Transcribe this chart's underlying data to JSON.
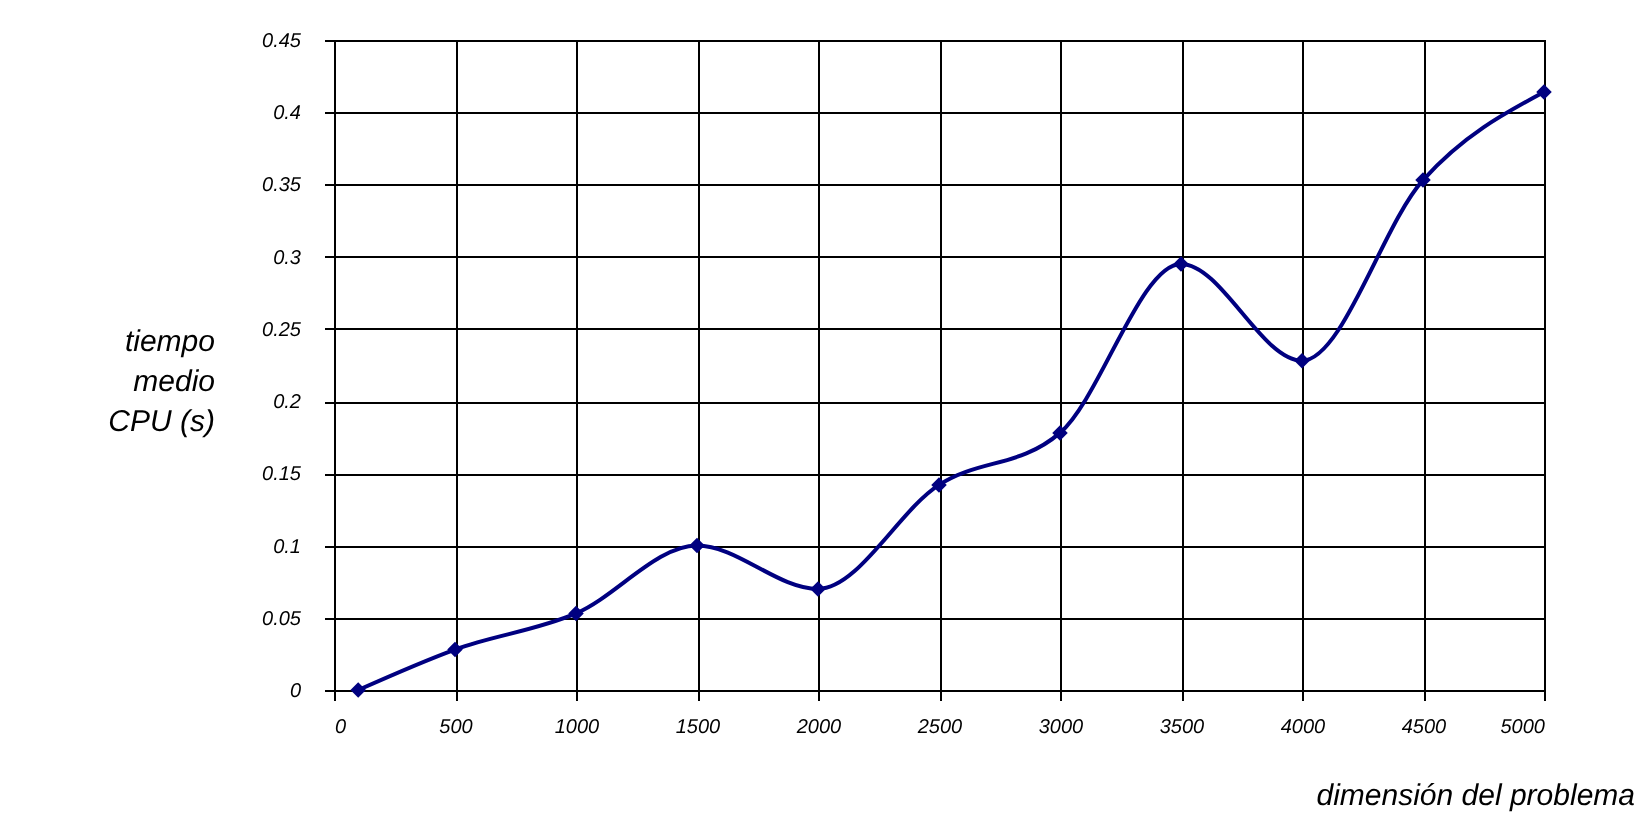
{
  "chart_data": {
    "type": "line",
    "xlabel": "dimensión del problema",
    "ylabel": "tiempo\nmedio\nCPU (s)",
    "x": [
      100,
      500,
      1000,
      1500,
      2000,
      2500,
      3000,
      3500,
      4000,
      4500,
      5000
    ],
    "series": [
      {
        "color": "#000080",
        "values": [
          0,
          0.028,
          0.053,
          0.1,
          0.07,
          0.142,
          0.178,
          0.295,
          0.228,
          0.353,
          0.414
        ]
      }
    ],
    "xlim": [
      0,
      5000
    ],
    "xticks": [
      0,
      500,
      1000,
      1500,
      2000,
      2500,
      3000,
      3500,
      4000,
      4500,
      5000
    ],
    "ylim": [
      0,
      0.45
    ],
    "yticks": [
      0,
      0.05,
      0.1,
      0.15,
      0.2,
      0.25,
      0.3,
      0.35,
      0.4,
      0.45
    ],
    "grid": true,
    "marker": "diamond",
    "line_style": "solid",
    "legend": false
  }
}
